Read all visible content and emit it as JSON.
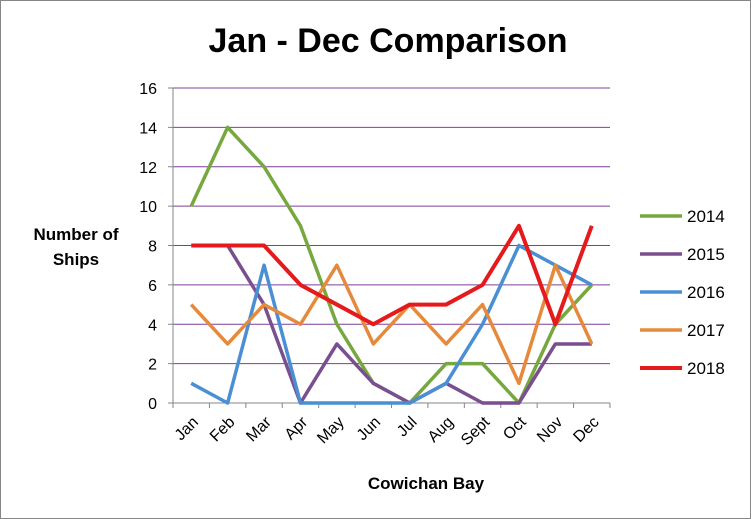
{
  "chart_data": {
    "type": "line",
    "title": "Jan - Dec Comparison",
    "xlabel": "Cowichan Bay",
    "ylabel": [
      "Number of",
      "Ships"
    ],
    "categories": [
      "Jan",
      "Feb",
      "Mar",
      "Apr",
      "May",
      "Jun",
      "Jul",
      "Aug",
      "Sept",
      "Oct",
      "Nov",
      "Dec"
    ],
    "ylim": [
      0,
      16
    ],
    "yticks": [
      0,
      2,
      4,
      6,
      8,
      10,
      12,
      14,
      16
    ],
    "grid": true,
    "legend_position": "right",
    "gridline_color": "#7f3f98",
    "series": [
      {
        "name": "2014",
        "color": "#77a83f",
        "values": [
          10,
          14,
          12,
          9,
          4,
          1,
          0,
          2,
          2,
          0,
          4,
          6
        ]
      },
      {
        "name": "2015",
        "color": "#7a4f8f",
        "values": [
          null,
          8,
          5,
          0,
          3,
          1,
          0,
          1,
          0,
          0,
          3,
          3
        ]
      },
      {
        "name": "2016",
        "color": "#4a8fd4",
        "values": [
          1,
          0,
          7,
          0,
          0,
          0,
          0,
          1,
          4,
          8,
          7,
          6
        ]
      },
      {
        "name": "2017",
        "color": "#e58a3c",
        "values": [
          5,
          3,
          5,
          4,
          7,
          3,
          5,
          3,
          5,
          1,
          7,
          3
        ]
      },
      {
        "name": "2018",
        "color": "#e41a1c",
        "values": [
          8,
          8,
          8,
          6,
          5,
          4,
          5,
          5,
          6,
          9,
          4,
          9
        ]
      }
    ]
  }
}
